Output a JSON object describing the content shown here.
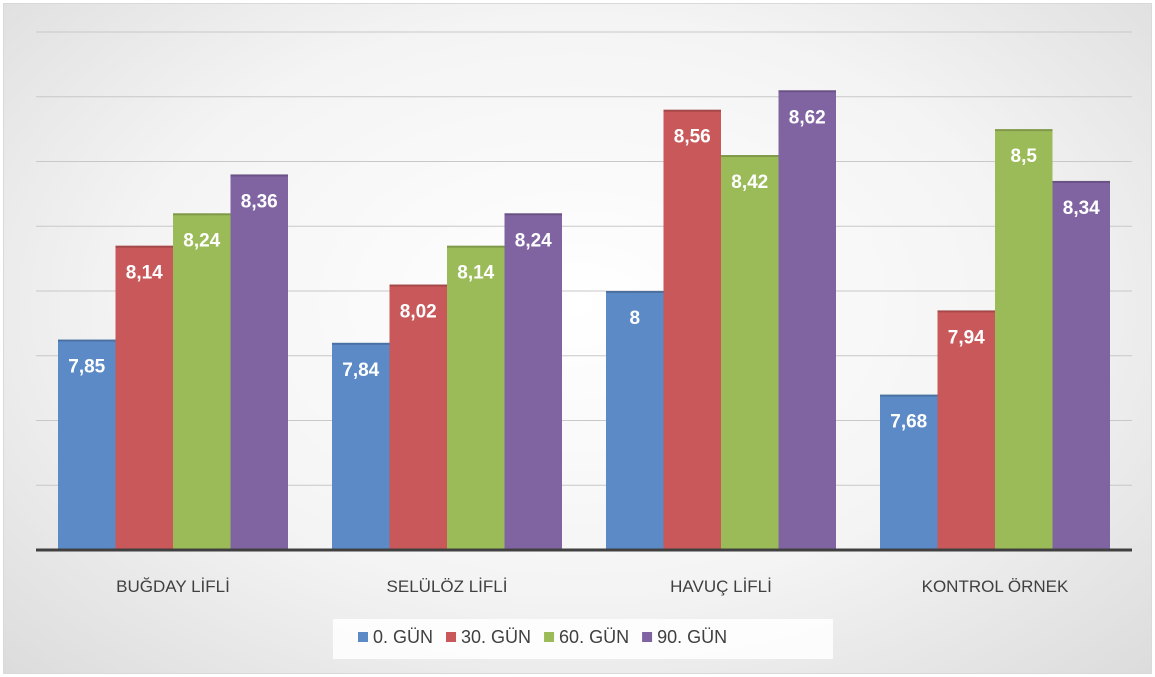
{
  "chart_data": {
    "type": "bar",
    "categories": [
      "BUĞDAY LİFLİ",
      "SELÜLÖZ LİFLİ",
      "HAVUÇ LİFLİ",
      "KONTROL ÖRNEK"
    ],
    "series": [
      {
        "name": "0. GÜN",
        "color": "#5b8ac6",
        "values": [
          7.85,
          7.84,
          8,
          7.68
        ],
        "labels": [
          "7,85",
          "7,84",
          "8",
          "7,68"
        ]
      },
      {
        "name": "30. GÜN",
        "color": "#c9585a",
        "values": [
          8.14,
          8.02,
          8.56,
          7.94
        ],
        "labels": [
          "8,14",
          "8,02",
          "8,56",
          "7,94"
        ]
      },
      {
        "name": "60. GÜN",
        "color": "#9bbb59",
        "values": [
          8.24,
          8.14,
          8.42,
          8.5
        ],
        "labels": [
          "8,24",
          "8,14",
          "8,42",
          "8,5"
        ]
      },
      {
        "name": "90. GÜN",
        "color": "#8064a2",
        "values": [
          8.36,
          8.24,
          8.62,
          8.34
        ],
        "labels": [
          "8,36",
          "8,24",
          "8,62",
          "8,34"
        ]
      }
    ],
    "ylim": [
      7.2,
      8.8
    ],
    "grid": true,
    "legend_position": "bottom"
  }
}
